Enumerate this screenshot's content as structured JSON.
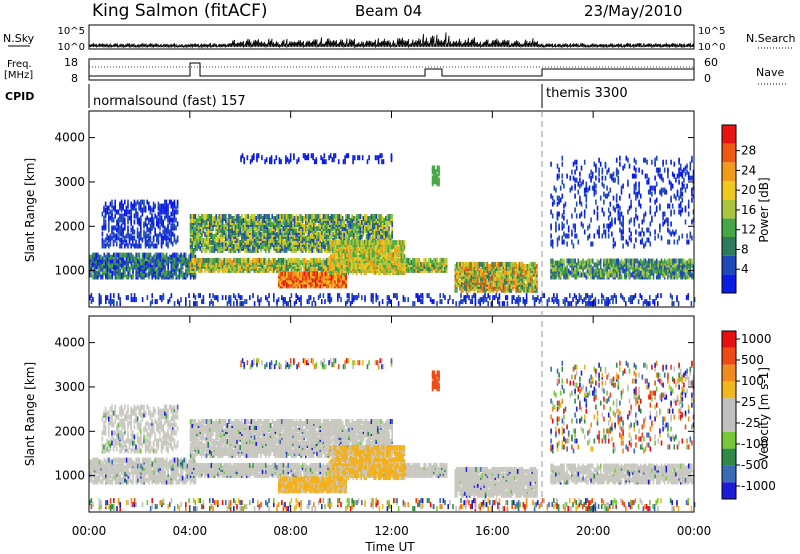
{
  "header": {
    "station": "King Salmon (fitACF)",
    "beam": "Beam 04",
    "date": "23/May/2010"
  },
  "top_panels": {
    "nsky_label": "N.Sky",
    "nsky_ticks": [
      "10^5",
      "10^0"
    ],
    "nsearch_label": "N.Search",
    "freq_label": "Freq.",
    "freq_unit": "[MHz]",
    "freq_ticks": [
      "18",
      "8"
    ],
    "nave_ticks": [
      "60",
      "0"
    ],
    "nave_label": "Nave",
    "cpid_label": "CPID",
    "cpid_segments": [
      {
        "label": "normalsound (fast) 157",
        "start_hour": 0
      },
      {
        "label": "themis 3300",
        "start_hour": 18
      }
    ]
  },
  "colors": {
    "power": [
      "#0b1be6",
      "#1e48b8",
      "#2f7a5a",
      "#47a645",
      "#a8c63d",
      "#f0c81e",
      "#f29a1a",
      "#ee5a14",
      "#e81414"
    ],
    "velocity": [
      "#1c1cd8",
      "#3a6ab8",
      "#2e8a46",
      "#76c83a",
      "#c0c0c0",
      "#c0c0c0",
      "#f0b81c",
      "#f08a1a",
      "#ee4a14",
      "#e61010"
    ],
    "grey": "#c8c8c0"
  },
  "chart_data": [
    {
      "type": "heatmap",
      "title": "Power",
      "xlabel": "",
      "ylabel": "Slant Range [km]",
      "x_range_hours": [
        0,
        24
      ],
      "ylim": [
        180,
        4600
      ],
      "y_ticks": [
        "1000",
        "2000",
        "3000",
        "4000"
      ],
      "colorbar": {
        "label": "Power [dB]",
        "ticks": [
          "4",
          "8",
          "12",
          "16",
          "20",
          "24",
          "28"
        ]
      }
    },
    {
      "type": "heatmap",
      "title": "Velocity",
      "xlabel": "Time UT",
      "ylabel": "Slant Range [km]",
      "x_range_hours": [
        0,
        24
      ],
      "ylim": [
        180,
        4600
      ],
      "x_ticks": [
        "00:00",
        "04:00",
        "08:00",
        "12:00",
        "16:00",
        "20:00",
        "00:00"
      ],
      "y_ticks": [
        "1000",
        "2000",
        "3000",
        "4000"
      ],
      "colorbar": {
        "label": "Velocity [m s-1]",
        "ticks": [
          "1000",
          "500",
          "100",
          "25",
          "-25",
          "-100",
          "-500",
          "-1000"
        ]
      }
    }
  ]
}
